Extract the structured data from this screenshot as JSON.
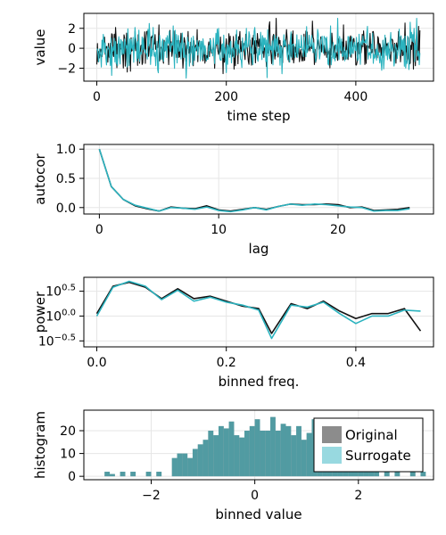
{
  "colors": {
    "original": "#111111",
    "surrogate": "#2bb3bf",
    "hist_original": "#7f7f7f",
    "hist_surrogate": "#2bb3bf",
    "legend_original": "#8c8c8c",
    "legend_surrogate": "#98d9e0"
  },
  "chart_data": [
    {
      "type": "line",
      "xlabel": "time step",
      "ylabel": "value",
      "xlim": [
        -20,
        520
      ],
      "ylim": [
        -3.3,
        3.5
      ],
      "xticks": [
        0,
        200,
        400
      ],
      "yticks": [
        2,
        0,
        -2
      ],
      "ytick_labels": [
        "2",
        "0",
        "−2"
      ],
      "grid": true,
      "series": [
        {
          "name": "Original",
          "generator": "noise",
          "n": 500,
          "std": 1.0
        },
        {
          "name": "Surrogate",
          "generator": "noise",
          "n": 500,
          "std": 1.0
        }
      ]
    },
    {
      "type": "line",
      "xlabel": "lag",
      "ylabel": "autocor",
      "xlim": [
        -1.3,
        28
      ],
      "ylim": [
        -0.11,
        1.08
      ],
      "xticks": [
        0,
        10,
        20
      ],
      "yticks": [
        1.0,
        0.5,
        0.0
      ],
      "ytick_labels": [
        "1.0",
        "0.5",
        "0.0"
      ],
      "grid": true,
      "series": [
        {
          "name": "Original",
          "x": [
            0,
            1,
            2,
            3,
            4,
            5,
            6,
            7,
            8,
            9,
            10,
            11,
            12,
            13,
            14,
            15,
            16,
            17,
            18,
            19,
            20,
            21,
            22,
            23,
            24,
            25,
            26
          ],
          "y": [
            1.0,
            0.36,
            0.14,
            0.03,
            -0.02,
            -0.06,
            0.01,
            -0.01,
            -0.02,
            0.03,
            -0.04,
            -0.06,
            -0.03,
            0.0,
            -0.03,
            0.02,
            0.06,
            0.05,
            0.05,
            0.06,
            0.05,
            0.0,
            0.01,
            -0.05,
            -0.04,
            -0.03,
            0.0
          ]
        },
        {
          "name": "Surrogate",
          "x": [
            0,
            1,
            2,
            3,
            4,
            5,
            6,
            7,
            8,
            9,
            10,
            11,
            12,
            13,
            14,
            15,
            16,
            17,
            18,
            19,
            20,
            21,
            22,
            23,
            24,
            25,
            26
          ],
          "y": [
            1.0,
            0.36,
            0.14,
            0.04,
            -0.01,
            -0.06,
            0.0,
            -0.01,
            -0.03,
            0.01,
            -0.05,
            -0.07,
            -0.04,
            0.0,
            -0.04,
            0.02,
            0.06,
            0.04,
            0.06,
            0.05,
            0.03,
            0.01,
            0.0,
            -0.06,
            -0.05,
            -0.05,
            -0.02
          ]
        }
      ]
    },
    {
      "type": "line",
      "xlabel": "binned freq.",
      "ylabel": "power",
      "xscale": "linear",
      "yscale": "log10",
      "xlim": [
        -0.02,
        0.52
      ],
      "ylim": [
        -0.62,
        0.78
      ],
      "xticks": [
        0.0,
        0.2,
        0.4
      ],
      "xtick_labels": [
        "0.0",
        "0.2",
        "0.4"
      ],
      "yticks": [
        0.5,
        0.0,
        -0.5
      ],
      "ytick_base": [
        "10",
        "10",
        "10"
      ],
      "ytick_exp": [
        "0.5",
        "0.0",
        "−0.5"
      ],
      "grid": true,
      "series": [
        {
          "name": "Original",
          "x": [
            0.0,
            0.025,
            0.05,
            0.075,
            0.1,
            0.125,
            0.15,
            0.175,
            0.2,
            0.225,
            0.25,
            0.27,
            0.3,
            0.325,
            0.35,
            0.375,
            0.4,
            0.425,
            0.45,
            0.475,
            0.5
          ],
          "y": [
            0.05,
            0.6,
            0.68,
            0.58,
            0.35,
            0.55,
            0.35,
            0.4,
            0.3,
            0.2,
            0.15,
            -0.35,
            0.25,
            0.15,
            0.3,
            0.1,
            -0.05,
            0.05,
            0.05,
            0.15,
            -0.3
          ]
        },
        {
          "name": "Surrogate",
          "x": [
            0.0,
            0.025,
            0.05,
            0.075,
            0.1,
            0.125,
            0.15,
            0.175,
            0.2,
            0.225,
            0.25,
            0.27,
            0.3,
            0.325,
            0.35,
            0.375,
            0.4,
            0.425,
            0.45,
            0.475,
            0.5
          ],
          "y": [
            0.0,
            0.58,
            0.7,
            0.6,
            0.33,
            0.52,
            0.3,
            0.38,
            0.28,
            0.22,
            0.12,
            -0.45,
            0.22,
            0.18,
            0.28,
            0.05,
            -0.15,
            0.0,
            0.0,
            0.12,
            0.1
          ]
        }
      ]
    },
    {
      "type": "bar",
      "xlabel": "binned value",
      "ylabel": "histogram",
      "xlim": [
        -3.3,
        3.45
      ],
      "ylim": [
        -1.5,
        29
      ],
      "xticks": [
        -2,
        0,
        2
      ],
      "xtick_labels": [
        "−2",
        "0",
        "2"
      ],
      "yticks": [
        20,
        10,
        0
      ],
      "grid": true,
      "legend_position": "bottom-right",
      "bin_width": 0.1,
      "bin_start": -2.9,
      "counts": [
        2,
        1,
        0,
        2,
        0,
        2,
        0,
        0,
        2,
        0,
        2,
        0,
        0,
        8,
        10,
        10,
        8,
        12,
        14,
        16,
        20,
        18,
        22,
        21,
        24,
        18,
        17,
        20,
        22,
        25,
        20,
        20,
        26,
        20,
        23,
        22,
        18,
        22,
        16,
        19,
        25,
        20,
        16,
        15,
        10,
        21,
        14,
        14,
        10,
        16,
        15,
        10,
        10,
        0,
        2,
        0,
        2,
        0,
        0,
        2,
        0,
        2
      ],
      "series": [
        {
          "name": "Original"
        },
        {
          "name": "Surrogate"
        }
      ]
    }
  ]
}
